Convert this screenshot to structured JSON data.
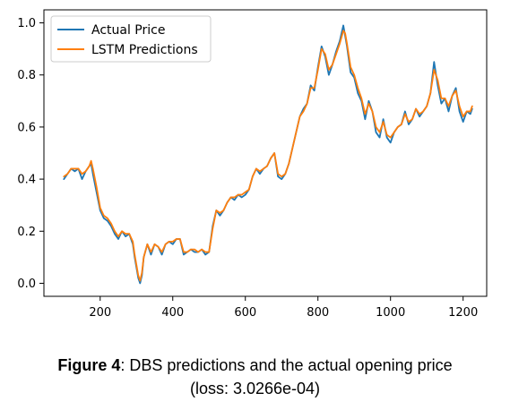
{
  "chart_data": {
    "type": "line",
    "title": "",
    "xlabel": "",
    "ylabel": "",
    "xlim": [
      45,
      1265
    ],
    "ylim": [
      -0.05,
      1.05
    ],
    "xticks": [
      200,
      400,
      600,
      800,
      1000,
      1200
    ],
    "yticks": [
      0.0,
      0.2,
      0.4,
      0.6,
      0.8,
      1.0
    ],
    "xtick_labels": [
      "200",
      "400",
      "600",
      "800",
      "1000",
      "1200"
    ],
    "ytick_labels": [
      "0.0",
      "0.2",
      "0.4",
      "0.6",
      "0.8",
      "1.0"
    ],
    "grid": false,
    "legend_position": "top-left",
    "x": [
      100,
      110,
      120,
      130,
      140,
      150,
      160,
      170,
      175,
      180,
      190,
      200,
      210,
      220,
      230,
      240,
      250,
      260,
      270,
      280,
      290,
      295,
      300,
      305,
      310,
      315,
      320,
      330,
      340,
      350,
      360,
      370,
      380,
      390,
      400,
      410,
      420,
      430,
      440,
      450,
      460,
      470,
      480,
      490,
      500,
      510,
      520,
      530,
      540,
      550,
      560,
      570,
      580,
      590,
      600,
      610,
      620,
      630,
      640,
      650,
      660,
      670,
      680,
      690,
      700,
      710,
      720,
      730,
      740,
      750,
      760,
      770,
      780,
      790,
      800,
      810,
      820,
      830,
      840,
      850,
      860,
      870,
      875,
      880,
      890,
      900,
      910,
      920,
      930,
      940,
      950,
      960,
      970,
      980,
      990,
      1000,
      1010,
      1020,
      1030,
      1040,
      1050,
      1060,
      1070,
      1080,
      1090,
      1100,
      1110,
      1120,
      1130,
      1140,
      1150,
      1160,
      1170,
      1180,
      1190,
      1200,
      1210,
      1220,
      1225
    ],
    "series": [
      {
        "name": "Actual Price",
        "color": "#1f77b4",
        "values": [
          0.4,
          0.42,
          0.44,
          0.43,
          0.44,
          0.4,
          0.43,
          0.45,
          0.46,
          0.42,
          0.35,
          0.28,
          0.25,
          0.24,
          0.22,
          0.19,
          0.17,
          0.2,
          0.18,
          0.19,
          0.15,
          0.1,
          0.06,
          0.02,
          0.0,
          0.03,
          0.1,
          0.15,
          0.11,
          0.15,
          0.14,
          0.11,
          0.15,
          0.16,
          0.15,
          0.17,
          0.17,
          0.11,
          0.12,
          0.13,
          0.12,
          0.12,
          0.13,
          0.11,
          0.12,
          0.22,
          0.28,
          0.26,
          0.28,
          0.31,
          0.33,
          0.32,
          0.34,
          0.33,
          0.34,
          0.36,
          0.41,
          0.44,
          0.42,
          0.44,
          0.45,
          0.48,
          0.5,
          0.41,
          0.4,
          0.42,
          0.46,
          0.52,
          0.58,
          0.64,
          0.67,
          0.69,
          0.76,
          0.74,
          0.83,
          0.91,
          0.87,
          0.8,
          0.84,
          0.89,
          0.93,
          0.99,
          0.95,
          0.91,
          0.81,
          0.79,
          0.73,
          0.7,
          0.63,
          0.7,
          0.66,
          0.58,
          0.56,
          0.63,
          0.56,
          0.54,
          0.58,
          0.6,
          0.61,
          0.66,
          0.61,
          0.63,
          0.67,
          0.64,
          0.66,
          0.68,
          0.73,
          0.85,
          0.76,
          0.69,
          0.71,
          0.66,
          0.72,
          0.75,
          0.66,
          0.62,
          0.66,
          0.65,
          0.67
        ]
      },
      {
        "name": "LSTM Predictions",
        "color": "#ff7f0e",
        "values": [
          0.41,
          0.42,
          0.44,
          0.44,
          0.44,
          0.42,
          0.43,
          0.45,
          0.47,
          0.44,
          0.37,
          0.29,
          0.26,
          0.25,
          0.23,
          0.2,
          0.18,
          0.2,
          0.19,
          0.19,
          0.16,
          0.11,
          0.07,
          0.03,
          0.01,
          0.04,
          0.1,
          0.15,
          0.12,
          0.15,
          0.14,
          0.12,
          0.15,
          0.16,
          0.16,
          0.17,
          0.17,
          0.12,
          0.12,
          0.13,
          0.13,
          0.12,
          0.13,
          0.12,
          0.12,
          0.21,
          0.28,
          0.27,
          0.28,
          0.31,
          0.33,
          0.33,
          0.34,
          0.34,
          0.35,
          0.36,
          0.41,
          0.44,
          0.43,
          0.44,
          0.45,
          0.48,
          0.5,
          0.42,
          0.41,
          0.42,
          0.46,
          0.52,
          0.58,
          0.64,
          0.66,
          0.69,
          0.75,
          0.75,
          0.82,
          0.9,
          0.88,
          0.82,
          0.84,
          0.88,
          0.92,
          0.97,
          0.96,
          0.92,
          0.83,
          0.8,
          0.75,
          0.71,
          0.65,
          0.69,
          0.66,
          0.6,
          0.58,
          0.62,
          0.57,
          0.56,
          0.58,
          0.6,
          0.61,
          0.65,
          0.62,
          0.63,
          0.67,
          0.65,
          0.66,
          0.68,
          0.73,
          0.82,
          0.78,
          0.71,
          0.71,
          0.68,
          0.72,
          0.74,
          0.68,
          0.64,
          0.66,
          0.66,
          0.68
        ]
      }
    ]
  },
  "caption": {
    "figure_label": "Figure 4",
    "line1_rest": ": DBS predictions and the actual opening price",
    "line2": "(loss: 3.0266e-04)"
  }
}
